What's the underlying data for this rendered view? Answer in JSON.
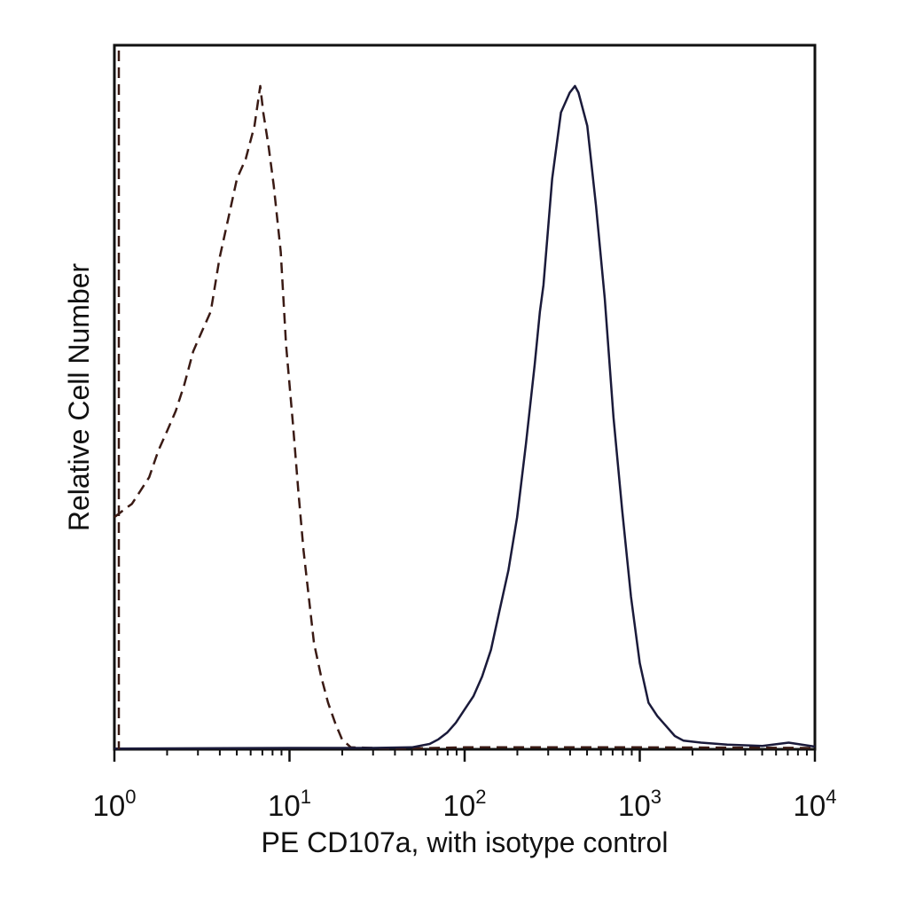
{
  "chart_data": {
    "type": "line",
    "title": "",
    "xlabel": "PE CD107a, with isotype control",
    "ylabel": "Relative Cell Number",
    "x_scale": "log",
    "xlim": [
      1,
      10000
    ],
    "ylim": [
      0,
      100
    ],
    "grid": false,
    "x_ticks": [
      {
        "base": "10",
        "exp": "0",
        "value": 1
      },
      {
        "base": "10",
        "exp": "1",
        "value": 10
      },
      {
        "base": "10",
        "exp": "2",
        "value": 100
      },
      {
        "base": "10",
        "exp": "3",
        "value": 1000
      },
      {
        "base": "10",
        "exp": "4",
        "value": 10000
      }
    ],
    "series": [
      {
        "line_style": "dashed",
        "color": "#3a1a14",
        "points": [
          [
            1.0,
            35
          ],
          [
            1.12,
            36
          ],
          [
            1.26,
            37
          ],
          [
            1.41,
            39
          ],
          [
            1.58,
            41
          ],
          [
            1.78,
            45
          ],
          [
            2.0,
            48
          ],
          [
            2.24,
            51
          ],
          [
            2.51,
            55
          ],
          [
            2.82,
            60
          ],
          [
            3.16,
            63
          ],
          [
            3.55,
            66
          ],
          [
            3.98,
            74
          ],
          [
            4.47,
            80
          ],
          [
            5.01,
            86
          ],
          [
            5.62,
            89
          ],
          [
            6.31,
            94
          ],
          [
            6.81,
            100
          ],
          [
            7.08,
            96
          ],
          [
            7.59,
            91
          ],
          [
            8.13,
            85
          ],
          [
            8.91,
            75
          ],
          [
            9.55,
            61
          ],
          [
            10.47,
            49
          ],
          [
            11.22,
            39
          ],
          [
            12.02,
            30
          ],
          [
            12.88,
            23
          ],
          [
            13.8,
            16
          ],
          [
            15.14,
            11
          ],
          [
            16.6,
            7
          ],
          [
            18.2,
            4
          ],
          [
            19.95,
            1.5
          ],
          [
            22.39,
            0.3
          ],
          [
            40,
            0.1
          ],
          [
            100,
            0.3
          ],
          [
            1000,
            0.3
          ],
          [
            10000,
            0.2
          ]
        ]
      },
      {
        "line_style": "solid",
        "color": "#1a1a3a",
        "points": [
          [
            1.0,
            0.1
          ],
          [
            10,
            0.2
          ],
          [
            30,
            0.2
          ],
          [
            50,
            0.3
          ],
          [
            63.1,
            0.8
          ],
          [
            70.8,
            1.5
          ],
          [
            79.4,
            2.5
          ],
          [
            89.1,
            4
          ],
          [
            100,
            6
          ],
          [
            112.2,
            8
          ],
          [
            125.9,
            11
          ],
          [
            141.3,
            15
          ],
          [
            158.5,
            21
          ],
          [
            177.8,
            27
          ],
          [
            199.5,
            35
          ],
          [
            223.9,
            46
          ],
          [
            251.2,
            58
          ],
          [
            269.2,
            66
          ],
          [
            281.8,
            70
          ],
          [
            316.2,
            86
          ],
          [
            354.8,
            96
          ],
          [
            398.1,
            99
          ],
          [
            426.6,
            100
          ],
          [
            446.7,
            99
          ],
          [
            501.2,
            94
          ],
          [
            562.3,
            82
          ],
          [
            631,
            68
          ],
          [
            707.9,
            50
          ],
          [
            794.3,
            36
          ],
          [
            891.3,
            23
          ],
          [
            1000,
            13
          ],
          [
            1122,
            7
          ],
          [
            1259,
            5
          ],
          [
            1413,
            3.5
          ],
          [
            1585,
            2
          ],
          [
            1778,
            1.3
          ],
          [
            2239,
            1
          ],
          [
            3162,
            0.7
          ],
          [
            5012,
            0.5
          ],
          [
            7079,
            1
          ],
          [
            10000,
            0.4
          ]
        ]
      }
    ]
  }
}
